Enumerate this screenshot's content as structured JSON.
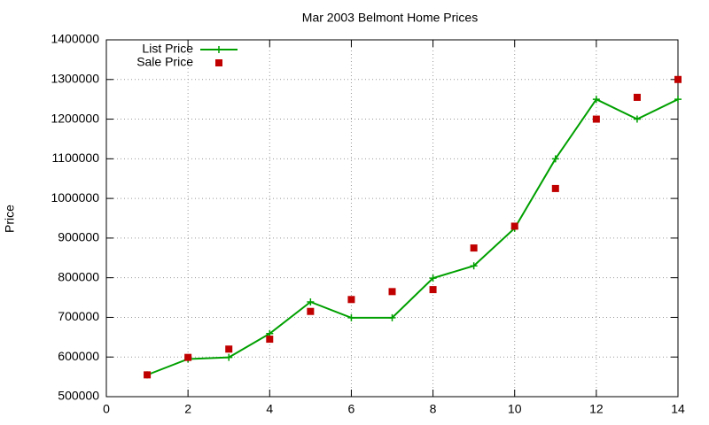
{
  "chart_data": {
    "type": "line",
    "title": "Mar 2003 Belmont Home Prices",
    "y_label": "Price",
    "x": [
      1,
      2,
      3,
      4,
      5,
      6,
      7,
      8,
      9,
      10,
      11,
      12,
      13,
      14
    ],
    "series": [
      {
        "name": "List Price",
        "color": "#00a000",
        "mode": "lines+markers",
        "values": [
          555000,
          595000,
          599000,
          659000,
          739000,
          699000,
          699000,
          799000,
          830000,
          925000,
          1100000,
          1250000,
          1200000,
          1250000
        ]
      },
      {
        "name": "Sale Price",
        "color": "#c00000",
        "mode": "markers",
        "values": [
          555000,
          599000,
          620000,
          645000,
          715000,
          745000,
          765000,
          770000,
          875000,
          930000,
          1025000,
          1200000,
          1255000,
          1300000
        ]
      }
    ],
    "xlim": [
      0,
      14
    ],
    "xticks": [
      0,
      2,
      4,
      6,
      8,
      10,
      12,
      14
    ],
    "ylim": [
      500000,
      1400000
    ],
    "yticks": [
      500000,
      600000,
      700000,
      800000,
      900000,
      1000000,
      1100000,
      1200000,
      1300000,
      1400000
    ],
    "grid": true,
    "legend": "top-left"
  }
}
